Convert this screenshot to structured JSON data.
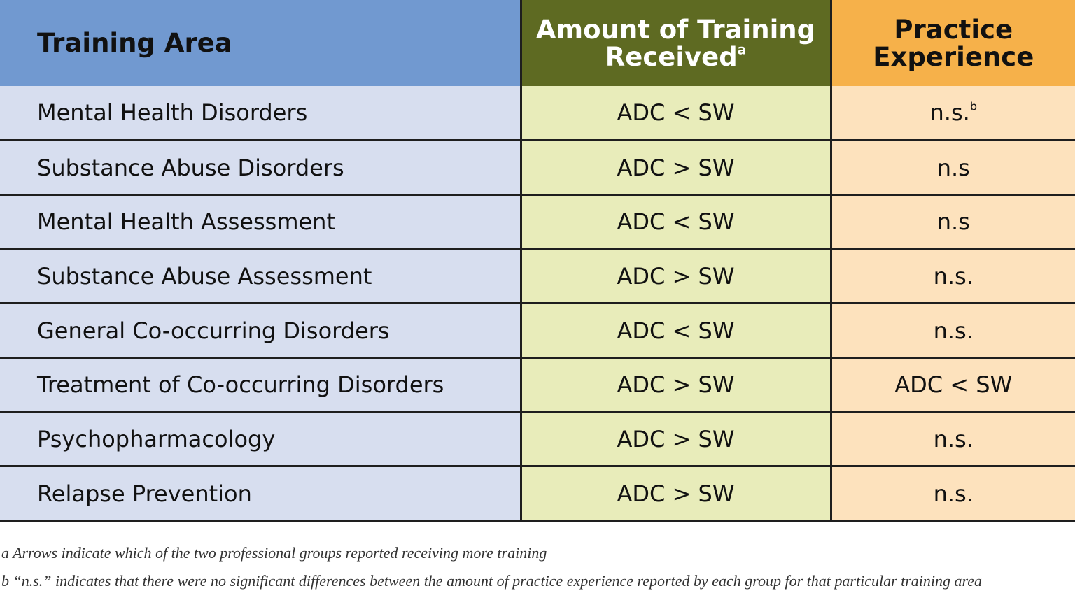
{
  "table": {
    "header": [
      {
        "text": "Training Area"
      },
      {
        "text": "Amount of Training Received",
        "sup": "a"
      },
      {
        "text": "Practice Experience"
      }
    ],
    "rows": [
      [
        {
          "text": "Mental Health Disorders"
        },
        {
          "text": "ADC < SW"
        },
        {
          "text": "n.s.",
          "sup": "b"
        }
      ],
      [
        {
          "text": "Substance Abuse Disorders"
        },
        {
          "text": "ADC > SW"
        },
        {
          "text": "n.s"
        }
      ],
      [
        {
          "text": "Mental Health Assessment"
        },
        {
          "text": "ADC < SW"
        },
        {
          "text": "n.s"
        }
      ],
      [
        {
          "text": "Substance Abuse Assessment"
        },
        {
          "text": "ADC > SW"
        },
        {
          "text": "n.s."
        }
      ],
      [
        {
          "text": "General Co-occurring Disorders"
        },
        {
          "text": "ADC < SW"
        },
        {
          "text": "n.s."
        }
      ],
      [
        {
          "text": "Treatment of Co-occurring Disorders"
        },
        {
          "text": "ADC > SW"
        },
        {
          "text": "ADC < SW"
        }
      ],
      [
        {
          "text": "Psychopharmacology"
        },
        {
          "text": "ADC > SW"
        },
        {
          "text": "n.s."
        }
      ],
      [
        {
          "text": "Relapse Prevention"
        },
        {
          "text": "ADC > SW"
        },
        {
          "text": "n.s."
        }
      ]
    ]
  },
  "footnotes": [
    {
      "marker": "a",
      "text": "Arrows indicate which of the two professional groups reported receiving more training"
    },
    {
      "marker": "b",
      "text": "“n.s.” indicates that there were no significant differences between the amount of practice experience reported by each group for that particular training area"
    }
  ]
}
